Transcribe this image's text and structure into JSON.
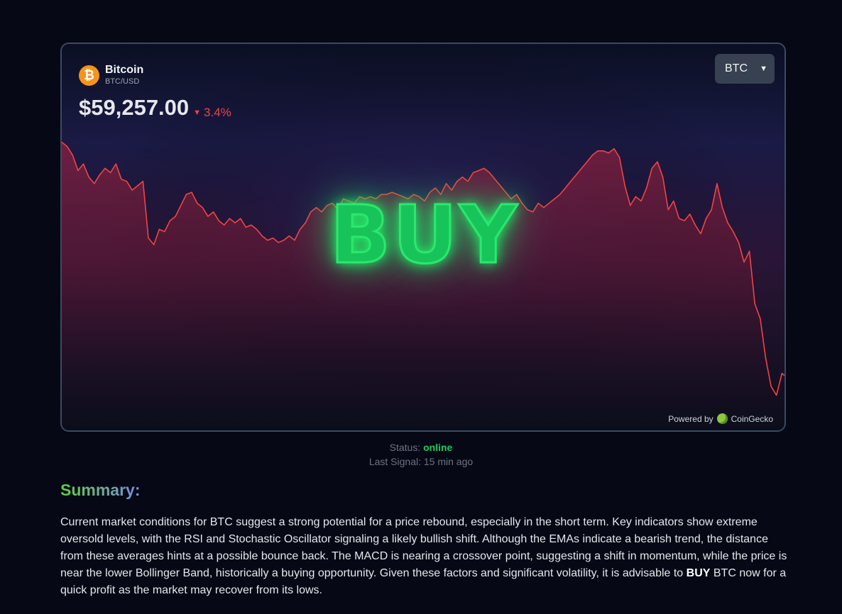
{
  "coin": {
    "name": "Bitcoin",
    "pair": "BTC/USD",
    "logo_icon": "bitcoin-icon",
    "logo_glyph": "₿",
    "price": "$59,257.00",
    "change": "3.4%",
    "change_direction": "down",
    "change_icon": "caret-down-icon"
  },
  "selector": {
    "selected": "BTC"
  },
  "signal": {
    "label": "BUY",
    "color": "#22c55e"
  },
  "powered": {
    "prefix": "Powered by",
    "provider": "CoinGecko"
  },
  "status": {
    "label": "Status:",
    "value": "online",
    "last_signal": "Last Signal: 15 min ago"
  },
  "summary": {
    "title": "Summary:",
    "text_before": "Current market conditions for BTC suggest a strong potential for a price rebound, especially in the short term. Key indicators show extreme oversold levels, with the RSI and Stochastic Oscillator signaling a likely bullish shift. Although the EMAs indicate a bearish trend, the distance from these averages hints at a possible bounce back. The MACD is nearing a crossover point, suggesting a shift in momentum, while the price is near the lower Bollinger Band, historically a buying opportunity. Given these factors and significant volatility, it is advisable to ",
    "text_bold": "BUY",
    "text_after": " BTC now for a quick profit as the market may recover from its lows."
  },
  "colors": {
    "line": "#ef4444",
    "accent_down": "#ef4444",
    "online": "#22c55e",
    "card_border": "#3b4a63"
  },
  "chart_data": {
    "type": "area",
    "series": [
      {
        "values": [
          64.4,
          64.2,
          63.8,
          63.1,
          63.4,
          62.8,
          62.5,
          62.9,
          63.2,
          63.0,
          63.4,
          62.7,
          62.6,
          62.2,
          62.4,
          62.6,
          60.0,
          59.7,
          60.4,
          60.3,
          60.8,
          61.0,
          61.5,
          62.0,
          62.1,
          61.6,
          61.4,
          61.0,
          61.2,
          60.8,
          60.6,
          60.9,
          60.7,
          60.9,
          60.5,
          60.6,
          60.4,
          60.1,
          59.9,
          60.0,
          59.8,
          59.9,
          60.1,
          59.9,
          60.4,
          60.7,
          61.2,
          61.4,
          61.2,
          61.5,
          61.6,
          61.3,
          61.8,
          61.7,
          61.6,
          61.9,
          61.8,
          61.9,
          61.8,
          62.0,
          62.0,
          62.1,
          62.0,
          61.9,
          61.8,
          62.0,
          61.9,
          61.7,
          62.1,
          62.3,
          62.0,
          62.5,
          62.2,
          62.6,
          62.8,
          62.6,
          63.0,
          63.1,
          63.2,
          63.0,
          62.7,
          62.4,
          62.1,
          61.8,
          62.0,
          61.6,
          61.3,
          61.2,
          61.6,
          61.4,
          61.6,
          61.8,
          62.0,
          62.3,
          62.6,
          62.9,
          63.2,
          63.5,
          63.8,
          64.0,
          64.0,
          63.9,
          64.1,
          63.7,
          62.4,
          61.5,
          61.9,
          61.7,
          62.3,
          63.2,
          63.5,
          62.8,
          61.3,
          61.7,
          60.9,
          60.8,
          61.1,
          60.6,
          60.2,
          60.9,
          61.3,
          62.5,
          61.4,
          60.7,
          60.3,
          59.8,
          58.9,
          59.4,
          57.0,
          56.3,
          54.5,
          53.2,
          52.8,
          53.8,
          53.6
        ]
      }
    ],
    "ylim": [
      52,
      65
    ],
    "grid": false,
    "legend": "none"
  }
}
